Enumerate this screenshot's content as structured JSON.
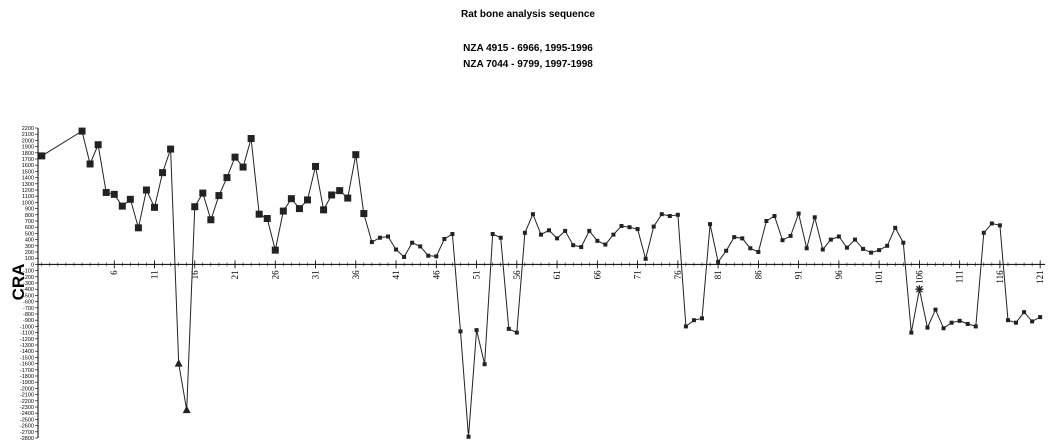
{
  "chart_data": {
    "type": "line",
    "title": "Rat bone analysis sequence",
    "subtitle_lines": [
      "NZA 4915 - 6966, 1995-1996",
      "NZA 7044 - 9799,  1997-1998"
    ],
    "y_label": "CRA",
    "color": "#222222",
    "x": [
      -3,
      2,
      3,
      4,
      5,
      6,
      7,
      8,
      9,
      10,
      11,
      12,
      13,
      14,
      15,
      16,
      17,
      18,
      19,
      20,
      21,
      22,
      23,
      24,
      25,
      26,
      27,
      28,
      29,
      30,
      31,
      32,
      33,
      34,
      35,
      36,
      37,
      38,
      39,
      40,
      41,
      42,
      43,
      44,
      45,
      46,
      47,
      48,
      49,
      50,
      51,
      52,
      53,
      54,
      55,
      56,
      57,
      58,
      59,
      60,
      61,
      62,
      63,
      64,
      65,
      66,
      67,
      68,
      69,
      70,
      71,
      72,
      73,
      74,
      75,
      76,
      77,
      78,
      79,
      80,
      81,
      82,
      83,
      84,
      85,
      86,
      87,
      88,
      89,
      90,
      91,
      92,
      93,
      94,
      95,
      96,
      97,
      98,
      99,
      100,
      101,
      102,
      103,
      104,
      105,
      106,
      107,
      108,
      109,
      110,
      111,
      112,
      113,
      114,
      115,
      116,
      117,
      118,
      119,
      120,
      121
    ],
    "values": [
      1750,
      2150,
      1620,
      1930,
      1160,
      1130,
      940,
      1050,
      590,
      1200,
      920,
      1480,
      1860,
      -1600,
      -2350,
      930,
      1150,
      720,
      1110,
      1400,
      1730,
      1570,
      2030,
      810,
      740,
      230,
      860,
      1060,
      900,
      1040,
      1580,
      880,
      1120,
      1190,
      1070,
      1770,
      820,
      360,
      430,
      450,
      240,
      120,
      350,
      290,
      140,
      130,
      410,
      490,
      -1080,
      -2780,
      -1060,
      -1610,
      490,
      430,
      -1040,
      -1100,
      510,
      810,
      480,
      550,
      420,
      540,
      310,
      280,
      540,
      380,
      320,
      480,
      620,
      600,
      570,
      90,
      610,
      810,
      780,
      800,
      -1000,
      -900,
      -870,
      650,
      40,
      220,
      440,
      420,
      260,
      200,
      700,
      780,
      390,
      460,
      820,
      260,
      760,
      240,
      400,
      450,
      270,
      400,
      250,
      190,
      230,
      300,
      590,
      350,
      -1100,
      -400,
      -1020,
      -730,
      -1030,
      -940,
      -910,
      -960,
      -1000,
      510,
      660,
      630,
      -900,
      -940,
      -770,
      -920,
      -850
    ],
    "markers": [
      "square",
      "square",
      "square",
      "square",
      "square",
      "square",
      "square",
      "square",
      "square",
      "square",
      "square",
      "square",
      "square",
      "triangle",
      "triangle",
      "square",
      "square",
      "square",
      "square",
      "square",
      "square",
      "square",
      "square",
      "square",
      "square",
      "square",
      "square",
      "square",
      "square",
      "square",
      "square",
      "square",
      "square",
      "square",
      "square",
      "square",
      "square",
      "small-square",
      "small-square",
      "small-square",
      "small-square",
      "small-square",
      "small-square",
      "small-square",
      "small-square",
      "small-square",
      "small-square",
      "small-square",
      "small-square",
      "small-square",
      "small-square",
      "small-square",
      "small-square",
      "small-square",
      "small-square",
      "small-square",
      "small-square",
      "small-square",
      "small-square",
      "small-square",
      "small-square",
      "small-square",
      "small-square",
      "small-square",
      "small-square",
      "small-square",
      "small-square",
      "small-square",
      "small-square",
      "small-square",
      "small-square",
      "small-square",
      "small-square",
      "small-square",
      "small-square",
      "small-square",
      "small-square",
      "small-square",
      "small-square",
      "small-square",
      "small-square",
      "small-square",
      "small-square",
      "small-square",
      "small-square",
      "small-square",
      "small-square",
      "small-square",
      "small-square",
      "small-square",
      "small-square",
      "small-square",
      "small-square",
      "small-square",
      "small-square",
      "small-square",
      "small-square",
      "small-square",
      "small-square",
      "small-square",
      "small-square",
      "small-square",
      "small-square",
      "small-square",
      "small-square",
      "star",
      "small-square",
      "small-square",
      "small-square",
      "small-square",
      "small-square",
      "small-square",
      "small-square",
      "small-square",
      "small-square",
      "small-square",
      "small-square",
      "small-square",
      "small-square",
      "small-square",
      "small-square"
    ],
    "xlim": [
      -3.47,
      121.6
    ],
    "xticks": [
      6,
      11,
      16,
      21,
      26,
      31,
      36,
      41,
      46,
      51,
      56,
      61,
      66,
      71,
      76,
      81,
      86,
      91,
      96,
      101,
      106,
      111,
      116,
      121
    ],
    "ylim": [
      -2800,
      2200
    ],
    "yticks": [
      -2800,
      -2700,
      -2600,
      -2500,
      -2400,
      -2300,
      -2200,
      -2100,
      -2000,
      -1900,
      -1800,
      -1700,
      -1600,
      -1500,
      -1400,
      -1300,
      -1200,
      -1100,
      -1000,
      -900,
      -800,
      -700,
      -600,
      -500,
      -400,
      -300,
      -200,
      -100,
      0,
      100,
      200,
      300,
      400,
      500,
      600,
      700,
      800,
      900,
      1000,
      1100,
      1200,
      1300,
      1400,
      1500,
      1600,
      1700,
      1800,
      1900,
      2000,
      2100,
      2200
    ]
  }
}
